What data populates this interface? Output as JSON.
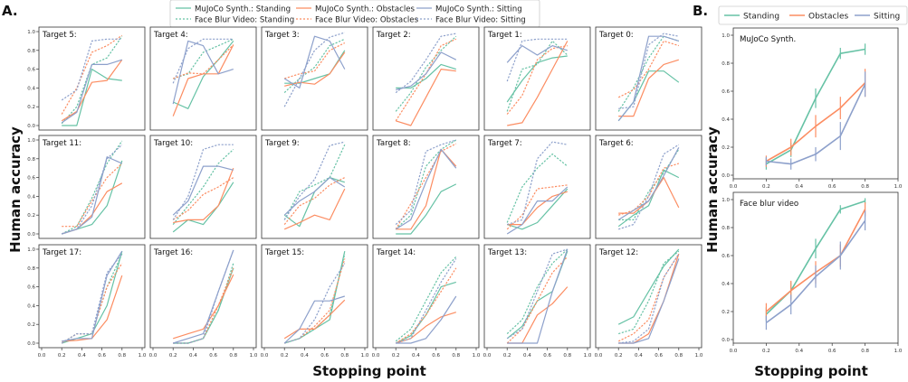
{
  "figure": {
    "panel_a_label": "A.",
    "panel_b_label": "B.",
    "xlabel": "Stopping point",
    "ylabel": "Human accuracy",
    "xticks": [
      "0.0",
      "0.2",
      "0.4",
      "0.6",
      "0.8",
      "1.0"
    ],
    "yticks": [
      "0.0",
      "0.2",
      "0.4",
      "0.6",
      "0.8",
      "1.0"
    ]
  },
  "legend_a": [
    {
      "label": "MuJoCo Synth.: Standing",
      "color": "#66c2a5",
      "dash": false
    },
    {
      "label": "Face Blur Video: Standing",
      "color": "#66c2a5",
      "dash": true
    },
    {
      "label": "MuJoCo Synth.: Obstacles",
      "color": "#fc8d62",
      "dash": false
    },
    {
      "label": "Face Blur Video: Obstacles",
      "color": "#fc8d62",
      "dash": true
    },
    {
      "label": "MuJoCo Synth.: Sitting",
      "color": "#8da0cb",
      "dash": false
    },
    {
      "label": "Face Blur Video: Sitting",
      "color": "#8da0cb",
      "dash": true
    }
  ],
  "legend_b": [
    {
      "label": "Standing",
      "color": "#66c2a5"
    },
    {
      "label": "Obstacles",
      "color": "#fc8d62"
    },
    {
      "label": "Sitting",
      "color": "#8da0cb"
    }
  ],
  "chart_data": [
    {
      "type": "line",
      "panel": "A",
      "x": [
        0.2,
        0.35,
        0.5,
        0.65,
        0.8
      ],
      "xlim": [
        0,
        1
      ],
      "ylim": [
        0,
        1
      ],
      "xlabel": "Stopping point",
      "ylabel": "Human accuracy",
      "series_order": [
        "Standing (MuJoCo)",
        "Standing (Face blur)",
        "Obstacles (MuJoCo)",
        "Obstacles (Face blur)",
        "Sitting (MuJoCo)",
        "Sitting (Face blur)"
      ],
      "subplots": [
        {
          "title": "Target 5:",
          "values": [
            [
              0.0,
              0.0,
              0.6,
              0.5,
              0.48
            ],
            [
              0.02,
              0.2,
              0.65,
              0.72,
              0.95
            ],
            [
              0.05,
              0.15,
              0.46,
              0.48,
              0.7
            ],
            [
              0.12,
              0.4,
              0.78,
              0.85,
              0.96
            ],
            [
              0.03,
              0.14,
              0.65,
              0.65,
              0.7
            ],
            [
              0.27,
              0.38,
              0.9,
              0.92,
              0.92
            ]
          ]
        },
        {
          "title": "Target 4:",
          "values": [
            [
              0.25,
              0.18,
              0.52,
              0.7,
              0.9
            ],
            [
              0.5,
              0.55,
              0.78,
              0.85,
              0.92
            ],
            [
              0.1,
              0.5,
              0.55,
              0.55,
              0.86
            ],
            [
              0.5,
              0.56,
              0.55,
              0.7,
              0.86
            ],
            [
              0.23,
              0.9,
              0.85,
              0.55,
              0.6
            ],
            [
              0.45,
              0.82,
              0.92,
              0.92,
              0.92
            ]
          ]
        },
        {
          "title": "Target 3:",
          "values": [
            [
              0.45,
              0.45,
              0.5,
              0.55,
              0.8
            ],
            [
              0.35,
              0.5,
              0.62,
              0.85,
              0.92
            ],
            [
              0.42,
              0.46,
              0.44,
              0.55,
              0.78
            ],
            [
              0.5,
              0.55,
              0.58,
              0.8,
              0.88
            ],
            [
              0.5,
              0.4,
              0.95,
              0.9,
              0.6
            ],
            [
              0.2,
              0.5,
              0.8,
              0.94,
              0.99
            ]
          ]
        },
        {
          "title": "Target 2:",
          "values": [
            [
              0.4,
              0.4,
              0.5,
              0.65,
              0.6
            ],
            [
              0.15,
              0.35,
              0.62,
              0.8,
              0.95
            ],
            [
              0.05,
              0.0,
              0.3,
              0.6,
              0.58
            ],
            [
              0.05,
              0.3,
              0.55,
              0.85,
              0.92
            ],
            [
              0.38,
              0.42,
              0.55,
              0.78,
              0.7
            ],
            [
              0.35,
              0.47,
              0.7,
              0.95,
              0.98
            ]
          ]
        },
        {
          "title": "Target 1:",
          "values": [
            [
              0.25,
              0.48,
              0.67,
              0.72,
              0.74
            ],
            [
              0.15,
              0.6,
              0.65,
              0.9,
              0.75
            ],
            [
              0.0,
              0.03,
              0.3,
              0.6,
              0.9
            ],
            [
              0.12,
              0.32,
              0.7,
              0.82,
              0.85
            ],
            [
              0.67,
              0.85,
              0.75,
              0.85,
              0.8
            ],
            [
              0.47,
              0.9,
              0.92,
              0.92,
              0.92
            ]
          ]
        },
        {
          "title": "Target 0:",
          "values": [
            [
              0.05,
              0.25,
              0.58,
              0.58,
              0.46
            ],
            [
              0.15,
              0.4,
              0.72,
              0.95,
              0.9
            ],
            [
              0.1,
              0.1,
              0.5,
              0.65,
              0.7
            ],
            [
              0.3,
              0.38,
              0.6,
              0.9,
              0.85
            ],
            [
              0.05,
              0.25,
              0.95,
              0.95,
              0.9
            ],
            [
              0.18,
              0.2,
              0.86,
              0.98,
              0.95
            ]
          ]
        },
        {
          "title": "Target 11:",
          "values": [
            [
              0.0,
              0.05,
              0.1,
              0.3,
              0.78
            ],
            [
              0.0,
              0.08,
              0.38,
              0.75,
              0.99
            ],
            [
              0.0,
              0.05,
              0.2,
              0.45,
              0.54
            ],
            [
              0.08,
              0.08,
              0.35,
              0.6,
              0.75
            ],
            [
              0.0,
              0.05,
              0.18,
              0.82,
              0.75
            ],
            [
              0.0,
              0.05,
              0.3,
              0.8,
              0.95
            ]
          ]
        },
        {
          "title": "Target 10:",
          "values": [
            [
              0.02,
              0.15,
              0.1,
              0.3,
              0.55
            ],
            [
              0.1,
              0.3,
              0.5,
              0.75,
              0.9
            ],
            [
              0.12,
              0.15,
              0.15,
              0.3,
              0.7
            ],
            [
              0.15,
              0.25,
              0.42,
              0.5,
              0.6
            ],
            [
              0.2,
              0.35,
              0.72,
              0.72,
              0.68
            ],
            [
              0.15,
              0.4,
              0.9,
              0.95,
              0.95
            ]
          ]
        },
        {
          "title": "Target 9:",
          "values": [
            [
              0.2,
              0.08,
              0.45,
              0.6,
              0.55
            ],
            [
              0.15,
              0.45,
              0.52,
              0.6,
              0.95
            ],
            [
              0.05,
              0.12,
              0.2,
              0.15,
              0.48
            ],
            [
              0.1,
              0.3,
              0.38,
              0.52,
              0.6
            ],
            [
              0.2,
              0.35,
              0.45,
              0.6,
              0.5
            ],
            [
              0.15,
              0.4,
              0.58,
              0.94,
              0.98
            ]
          ]
        },
        {
          "title": "Target 8:",
          "values": [
            [
              0.0,
              0.0,
              0.2,
              0.45,
              0.53
            ],
            [
              0.05,
              0.2,
              0.72,
              0.9,
              1.0
            ],
            [
              0.05,
              0.05,
              0.3,
              0.9,
              0.72
            ],
            [
              0.05,
              0.32,
              0.6,
              0.88,
              0.96
            ],
            [
              0.05,
              0.15,
              0.55,
              0.9,
              0.7
            ],
            [
              0.1,
              0.25,
              0.88,
              0.95,
              1.0
            ]
          ]
        },
        {
          "title": "Target 7:",
          "values": [
            [
              0.1,
              0.05,
              0.12,
              0.3,
              0.48
            ],
            [
              0.12,
              0.5,
              0.7,
              0.85,
              0.72
            ],
            [
              0.1,
              0.1,
              0.28,
              0.4,
              0.45
            ],
            [
              0.05,
              0.2,
              0.48,
              0.5,
              0.52
            ],
            [
              0.0,
              0.1,
              0.35,
              0.35,
              0.5
            ],
            [
              0.1,
              0.15,
              0.8,
              0.98,
              0.95
            ]
          ]
        },
        {
          "title": "Target 6:",
          "values": [
            [
              0.08,
              0.2,
              0.3,
              0.68,
              0.6
            ],
            [
              0.15,
              0.15,
              0.45,
              0.65,
              0.9
            ],
            [
              0.22,
              0.22,
              0.35,
              0.6,
              0.28
            ],
            [
              0.2,
              0.25,
              0.4,
              0.7,
              0.75
            ],
            [
              0.15,
              0.25,
              0.35,
              0.62,
              0.92
            ],
            [
              0.05,
              0.1,
              0.4,
              0.85,
              0.95
            ]
          ]
        },
        {
          "title": "Target 17:",
          "values": [
            [
              0.0,
              0.05,
              0.1,
              0.4,
              0.98
            ],
            [
              0.0,
              0.1,
              0.1,
              0.6,
              0.95
            ],
            [
              0.02,
              0.03,
              0.05,
              0.25,
              0.72
            ],
            [
              0.0,
              0.1,
              0.1,
              0.6,
              0.85
            ],
            [
              0.02,
              0.05,
              0.05,
              0.72,
              0.98
            ],
            [
              0.0,
              0.1,
              0.1,
              0.75,
              0.95
            ]
          ]
        },
        {
          "title": "Target 16:",
          "values": [
            [
              0.0,
              0.0,
              0.05,
              0.35,
              0.8
            ],
            [
              0.0,
              0.0,
              0.05,
              0.35,
              0.85
            ],
            [
              0.05,
              0.1,
              0.15,
              0.4,
              0.73
            ],
            [
              0.0,
              0.0,
              0.05,
              0.4,
              0.8
            ],
            [
              0.0,
              0.05,
              0.1,
              0.55,
              0.99
            ],
            [
              0.0,
              0.0,
              0.05,
              0.55,
              0.99
            ]
          ]
        },
        {
          "title": "Target 15:",
          "values": [
            [
              0.0,
              0.05,
              0.15,
              0.25,
              0.98
            ],
            [
              0.0,
              0.05,
              0.15,
              0.3,
              0.95
            ],
            [
              0.05,
              0.15,
              0.15,
              0.3,
              0.46
            ],
            [
              0.0,
              0.05,
              0.18,
              0.35,
              0.9
            ],
            [
              0.0,
              0.15,
              0.45,
              0.45,
              0.5
            ],
            [
              0.0,
              0.05,
              0.25,
              0.6,
              0.85
            ]
          ]
        },
        {
          "title": "Target 14:",
          "values": [
            [
              0.0,
              0.08,
              0.3,
              0.6,
              0.65
            ],
            [
              0.02,
              0.15,
              0.45,
              0.75,
              0.92
            ],
            [
              0.0,
              0.05,
              0.18,
              0.28,
              0.33
            ],
            [
              0.0,
              0.1,
              0.3,
              0.55,
              0.8
            ],
            [
              0.0,
              0.0,
              0.05,
              0.25,
              0.5
            ],
            [
              0.0,
              0.05,
              0.35,
              0.65,
              0.9
            ]
          ]
        },
        {
          "title": "Target 13:",
          "values": [
            [
              0.05,
              0.18,
              0.45,
              0.55,
              0.98
            ],
            [
              0.1,
              0.25,
              0.6,
              0.85,
              1.0
            ],
            [
              0.0,
              0.0,
              0.3,
              0.42,
              0.6
            ],
            [
              0.0,
              0.15,
              0.45,
              0.75,
              0.92
            ],
            [
              0.0,
              0.0,
              0.0,
              0.55,
              1.0
            ],
            [
              0.05,
              0.15,
              0.55,
              0.95,
              1.0
            ]
          ]
        },
        {
          "title": "Target 12:",
          "values": [
            [
              0.2,
              0.28,
              0.55,
              0.82,
              1.0
            ],
            [
              0.1,
              0.15,
              0.45,
              0.85,
              0.98
            ],
            [
              0.0,
              0.0,
              0.1,
              0.45,
              0.95
            ],
            [
              0.02,
              0.1,
              0.25,
              0.7,
              0.95
            ],
            [
              0.0,
              0.0,
              0.05,
              0.45,
              0.9
            ],
            [
              0.0,
              0.02,
              0.15,
              0.7,
              0.95
            ]
          ]
        }
      ]
    },
    {
      "type": "line",
      "panel": "B",
      "x": [
        0.2,
        0.35,
        0.5,
        0.65,
        0.8
      ],
      "xlim": [
        0,
        1
      ],
      "ylim": [
        0,
        1
      ],
      "xlabel": "Stopping point",
      "ylabel": "Human accuracy",
      "subplots": [
        {
          "title": "MuJoCo Synth.",
          "series": [
            {
              "name": "Standing",
              "values": [
                0.08,
                0.18,
                0.55,
                0.87,
                0.9
              ],
              "err": [
                0.04,
                0.05,
                0.07,
                0.04,
                0.04
              ]
            },
            {
              "name": "Obstacles",
              "values": [
                0.1,
                0.2,
                0.35,
                0.48,
                0.66
              ],
              "err": [
                0.04,
                0.06,
                0.08,
                0.08,
                0.1
              ]
            },
            {
              "name": "Sitting",
              "values": [
                0.1,
                0.08,
                0.15,
                0.28,
                0.65
              ],
              "err": [
                0.03,
                0.04,
                0.05,
                0.1,
                0.09
              ]
            }
          ]
        },
        {
          "title": "Face blur video",
          "series": [
            {
              "name": "Standing",
              "values": [
                0.18,
                0.35,
                0.65,
                0.93,
                0.99
              ],
              "err": [
                0.05,
                0.06,
                0.07,
                0.03,
                0.02
              ]
            },
            {
              "name": "Obstacles",
              "values": [
                0.2,
                0.35,
                0.48,
                0.6,
                0.93
              ],
              "err": [
                0.06,
                0.07,
                0.08,
                0.08,
                0.05
              ]
            },
            {
              "name": "Sitting",
              "values": [
                0.12,
                0.25,
                0.45,
                0.6,
                0.85
              ],
              "err": [
                0.05,
                0.07,
                0.08,
                0.1,
                0.07
              ]
            }
          ]
        }
      ]
    }
  ]
}
